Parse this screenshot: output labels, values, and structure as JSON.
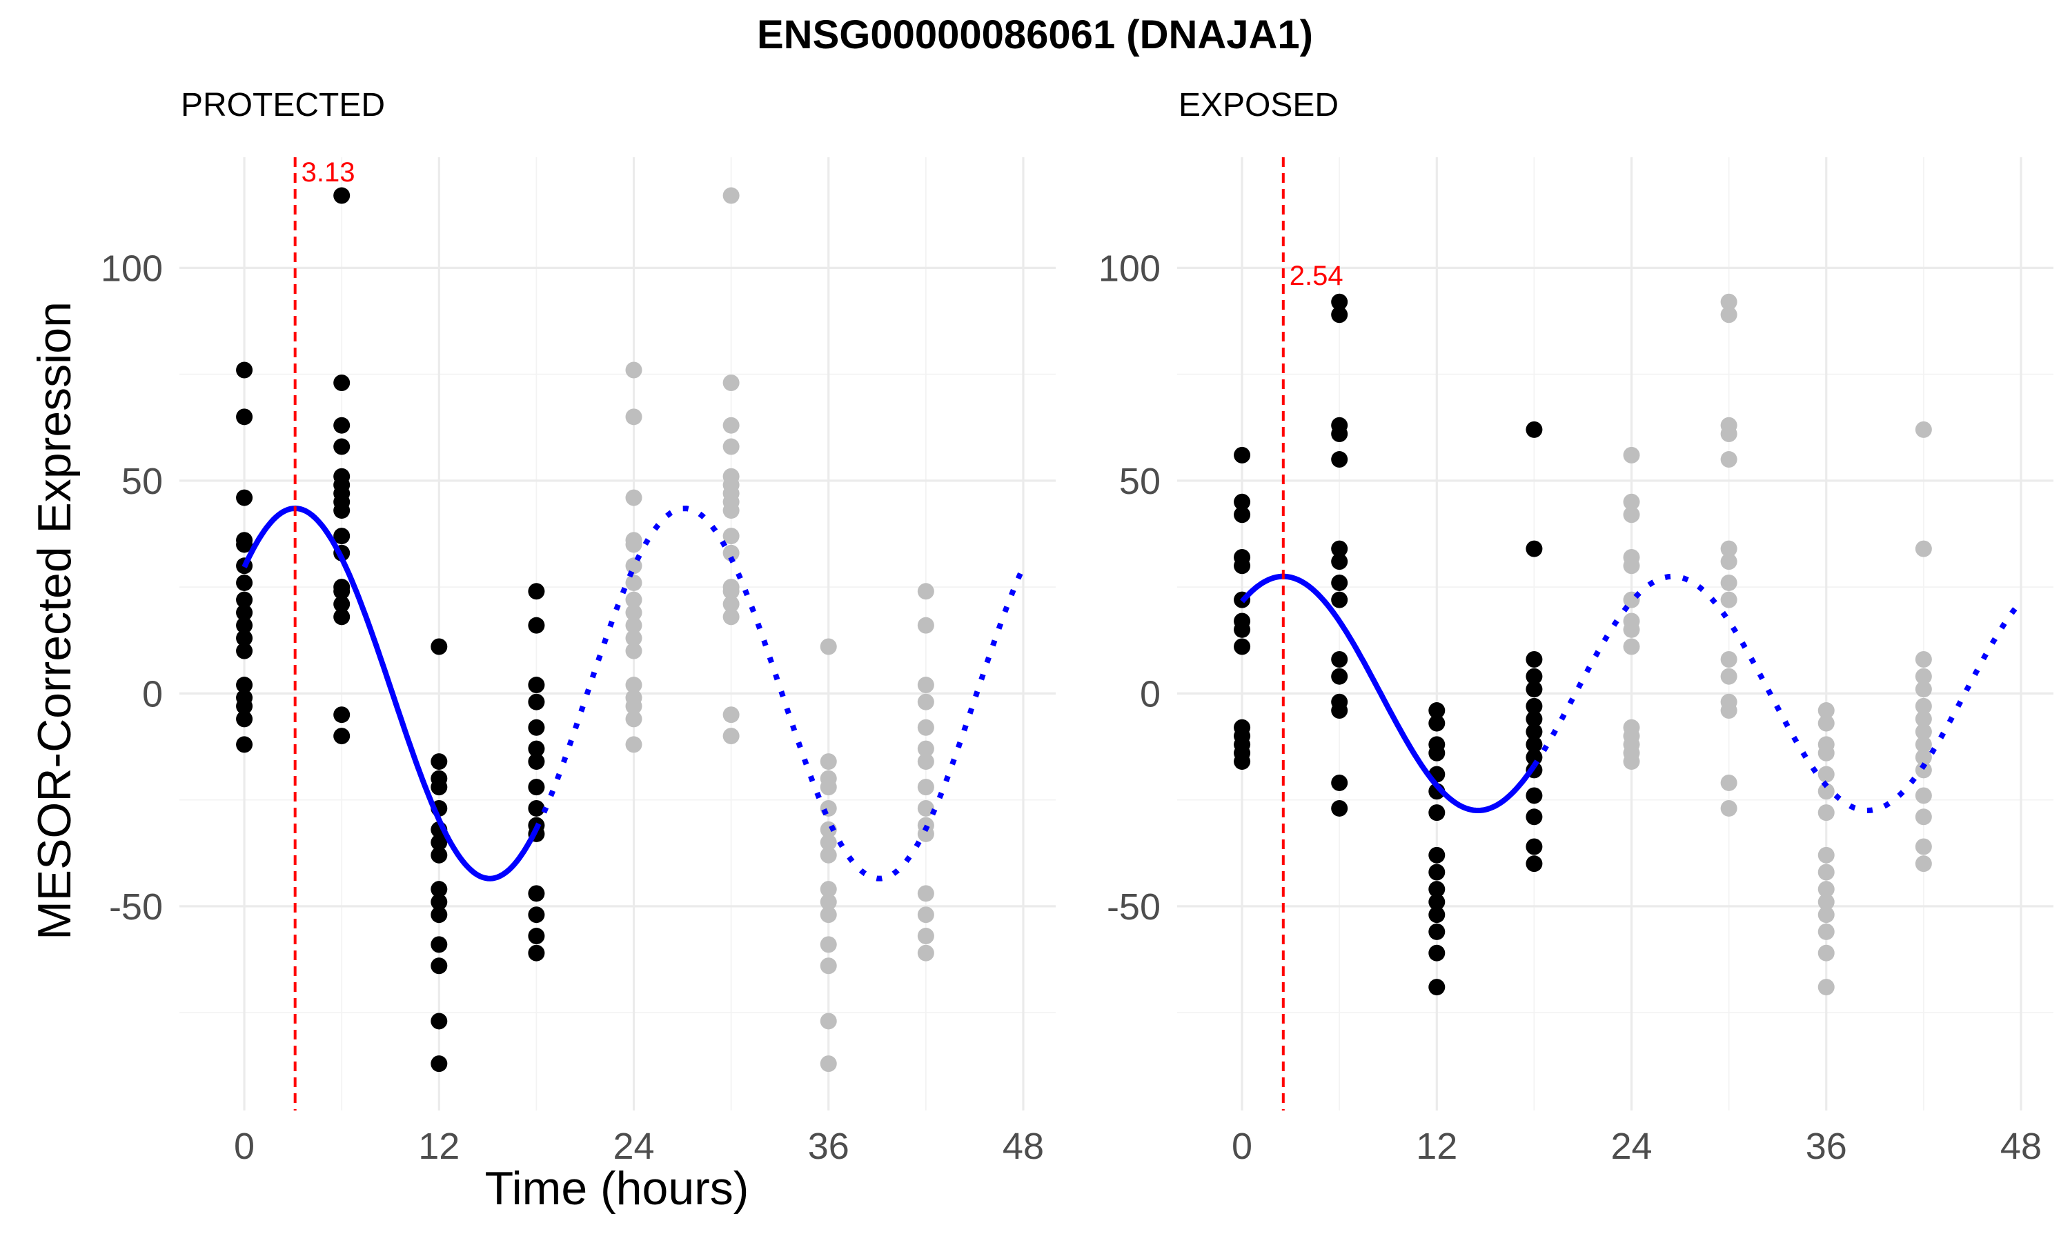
{
  "title": "ENSG00000086061 (DNAJA1)",
  "colors": {
    "observed_points": "#000000",
    "repeated_points": "#bebebe",
    "fit_line": "#0000ff",
    "acrophase": "#ff0000",
    "grid": "#ebebeb"
  },
  "chart_data": [
    {
      "type": "scatter",
      "panel": "PROTECTED",
      "xlabel": "Time (hours)",
      "ylabel": "MESOR-Corrected Expression",
      "xlim": [
        -4,
        50
      ],
      "ylim": [
        -98,
        126
      ],
      "xticks": [
        "0",
        "12",
        "24",
        "36",
        "48"
      ],
      "yticks": [
        "-50",
        "0",
        "50",
        "100"
      ],
      "grid": true,
      "acrophase": {
        "x": 3.13,
        "label": "3.13"
      },
      "fit": {
        "mesor": 0,
        "amplitude": 43.5,
        "period": 24,
        "peak": 3.13,
        "solid_range": [
          0,
          18
        ],
        "dotted_range": [
          18,
          48
        ]
      },
      "points": [
        {
          "x": 0,
          "values": [
            76,
            65,
            46,
            36,
            35,
            30,
            26,
            22,
            19,
            16,
            13,
            10,
            2,
            -1,
            -3,
            -6,
            -12
          ]
        },
        {
          "x": 6,
          "values": [
            117,
            73,
            63,
            58,
            51,
            49,
            47,
            45,
            43,
            37,
            33,
            25,
            24,
            21,
            18,
            -5,
            -10
          ]
        },
        {
          "x": 12,
          "values": [
            11,
            -16,
            -20,
            -22,
            -27,
            -32,
            -35,
            -38,
            -46,
            -49,
            -52,
            -59,
            -64,
            -77,
            -87
          ]
        },
        {
          "x": 18,
          "values": [
            24,
            16,
            2,
            -2,
            -8,
            -13,
            -16,
            -22,
            -27,
            -31,
            -33,
            -47,
            -52,
            -57,
            -61
          ]
        }
      ]
    },
    {
      "type": "scatter",
      "panel": "EXPOSED",
      "xlabel": "",
      "ylabel": "",
      "xlim": [
        -4,
        50
      ],
      "ylim": [
        -98,
        126
      ],
      "xticks": [
        "0",
        "12",
        "24",
        "36",
        "48"
      ],
      "yticks": [
        "-50",
        "0",
        "50",
        "100"
      ],
      "grid": true,
      "acrophase": {
        "x": 2.54,
        "label": "2.54"
      },
      "fit": {
        "mesor": 0,
        "amplitude": 27.5,
        "period": 24,
        "peak": 2.54,
        "solid_range": [
          0,
          18
        ],
        "dotted_range": [
          18,
          48
        ]
      },
      "points": [
        {
          "x": 0,
          "values": [
            56,
            45,
            42,
            32,
            30,
            22,
            17,
            15,
            11,
            -8,
            -10,
            -12,
            -14,
            -16
          ]
        },
        {
          "x": 6,
          "values": [
            92,
            89,
            63,
            61,
            55,
            34,
            31,
            26,
            22,
            8,
            4,
            -2,
            -4,
            -21,
            -27
          ]
        },
        {
          "x": 12,
          "values": [
            -4,
            -7,
            -12,
            -14,
            -19,
            -23,
            -28,
            -38,
            -42,
            -46,
            -49,
            -52,
            -56,
            -61,
            -69
          ]
        },
        {
          "x": 18,
          "values": [
            62,
            34,
            8,
            4,
            1,
            -3,
            -6,
            -9,
            -12,
            -15,
            -18,
            -24,
            -29,
            -36,
            -40
          ]
        }
      ]
    }
  ]
}
